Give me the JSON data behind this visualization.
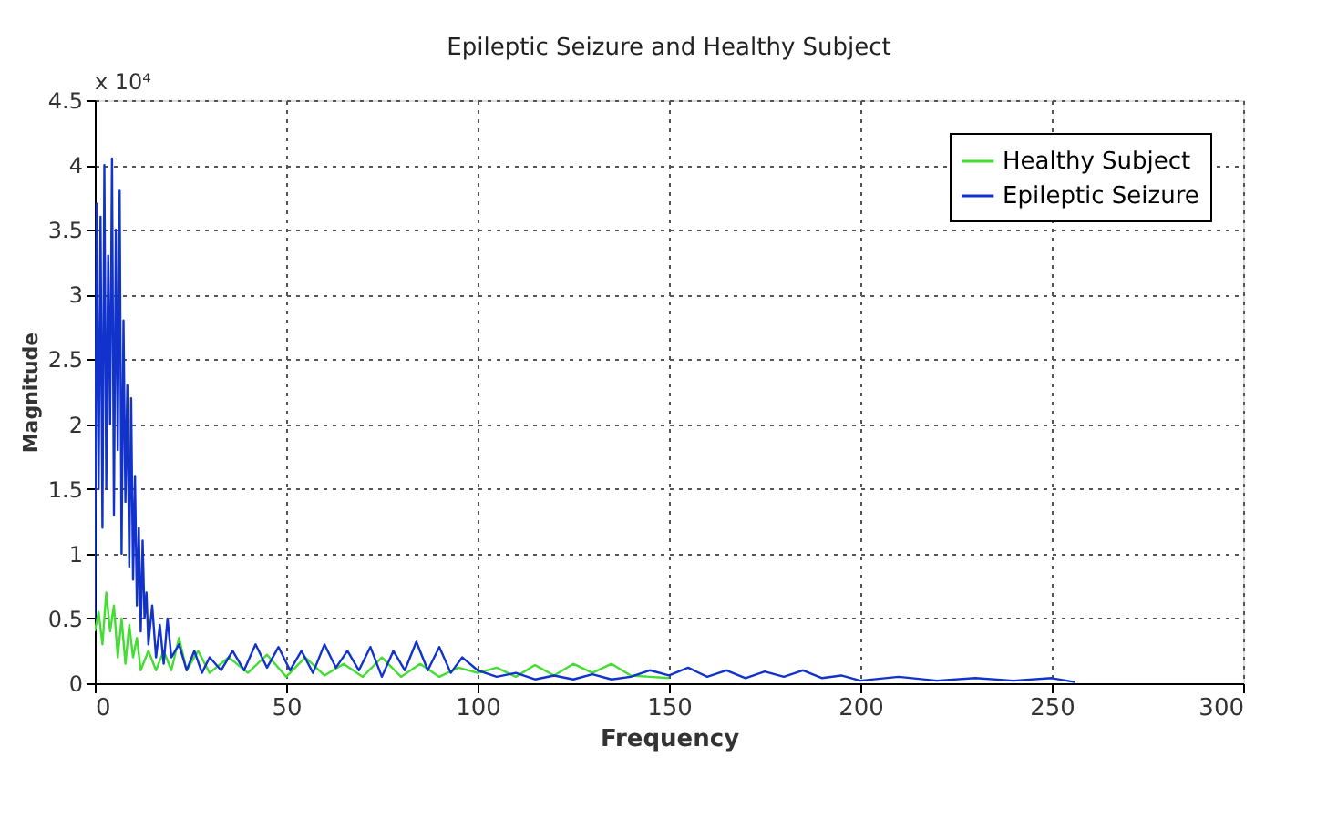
{
  "chart_data": {
    "type": "line",
    "title": "Epileptic Seizure and Healthy Subject",
    "xlabel": "Frequency",
    "ylabel": "Magnitude",
    "annotations": [
      "x 10⁴"
    ],
    "xlim": [
      0,
      300
    ],
    "xticks": [
      0,
      50,
      100,
      150,
      200,
      250,
      300
    ],
    "ylim": [
      0,
      4.5
    ],
    "yticks": [
      0,
      0.5,
      1,
      1.5,
      2,
      2.5,
      3,
      3.5,
      4,
      4.5
    ],
    "grid": true,
    "legend": "top right",
    "line_style": "solid",
    "marker": "none",
    "series": [
      {
        "name": "Healthy Subject",
        "color": "#44dd33",
        "x": [
          0,
          1,
          2,
          3,
          4,
          5,
          6,
          7,
          8,
          9,
          10,
          11,
          12,
          14,
          16,
          18,
          20,
          22,
          24,
          27,
          30,
          35,
          40,
          45,
          50,
          55,
          60,
          65,
          70,
          75,
          80,
          85,
          90,
          95,
          100,
          105,
          110,
          115,
          120,
          125,
          130,
          135,
          140,
          145,
          150
        ],
        "values": [
          0.4,
          0.55,
          0.3,
          0.7,
          0.4,
          0.6,
          0.2,
          0.5,
          0.15,
          0.45,
          0.2,
          0.35,
          0.1,
          0.25,
          0.1,
          0.25,
          0.1,
          0.35,
          0.1,
          0.25,
          0.08,
          0.2,
          0.08,
          0.22,
          0.05,
          0.2,
          0.06,
          0.15,
          0.05,
          0.2,
          0.05,
          0.15,
          0.05,
          0.12,
          0.08,
          0.12,
          0.05,
          0.14,
          0.06,
          0.15,
          0.08,
          0.15,
          0.06,
          0.05,
          0.04
        ]
      },
      {
        "name": "Epileptic Seizure",
        "color": "#1133cc",
        "x": [
          0,
          0.5,
          1,
          1.5,
          2,
          2.5,
          3,
          3.5,
          4,
          4.5,
          5,
          5.5,
          6,
          6.5,
          7,
          7.5,
          8,
          8.5,
          9,
          9.5,
          10,
          10.5,
          11,
          11.5,
          12,
          12.5,
          13,
          13.5,
          14,
          15,
          16,
          17,
          18,
          19,
          20,
          22,
          24,
          26,
          28,
          30,
          33,
          36,
          39,
          42,
          45,
          48,
          51,
          54,
          57,
          60,
          63,
          66,
          69,
          72,
          75,
          78,
          81,
          84,
          87,
          90,
          93,
          96,
          100,
          105,
          110,
          115,
          120,
          125,
          130,
          135,
          140,
          145,
          150,
          155,
          160,
          165,
          170,
          175,
          180,
          185,
          190,
          195,
          200,
          210,
          220,
          230,
          240,
          250,
          256
        ],
        "values": [
          0.5,
          3.7,
          1.5,
          3.6,
          1.2,
          4.0,
          1.5,
          3.3,
          2.0,
          4.05,
          1.3,
          3.5,
          1.8,
          3.8,
          1.0,
          2.8,
          1.4,
          2.3,
          0.9,
          2.2,
          0.8,
          1.6,
          0.6,
          1.2,
          0.4,
          1.1,
          0.5,
          0.7,
          0.3,
          0.6,
          0.2,
          0.45,
          0.15,
          0.5,
          0.2,
          0.3,
          0.1,
          0.25,
          0.08,
          0.2,
          0.1,
          0.25,
          0.1,
          0.3,
          0.12,
          0.28,
          0.1,
          0.25,
          0.08,
          0.3,
          0.12,
          0.25,
          0.1,
          0.28,
          0.05,
          0.25,
          0.1,
          0.32,
          0.1,
          0.28,
          0.08,
          0.2,
          0.1,
          0.05,
          0.08,
          0.03,
          0.06,
          0.03,
          0.07,
          0.03,
          0.05,
          0.1,
          0.06,
          0.12,
          0.05,
          0.1,
          0.04,
          0.09,
          0.05,
          0.1,
          0.04,
          0.06,
          0.02,
          0.05,
          0.02,
          0.04,
          0.02,
          0.04,
          0.01
        ]
      }
    ]
  }
}
